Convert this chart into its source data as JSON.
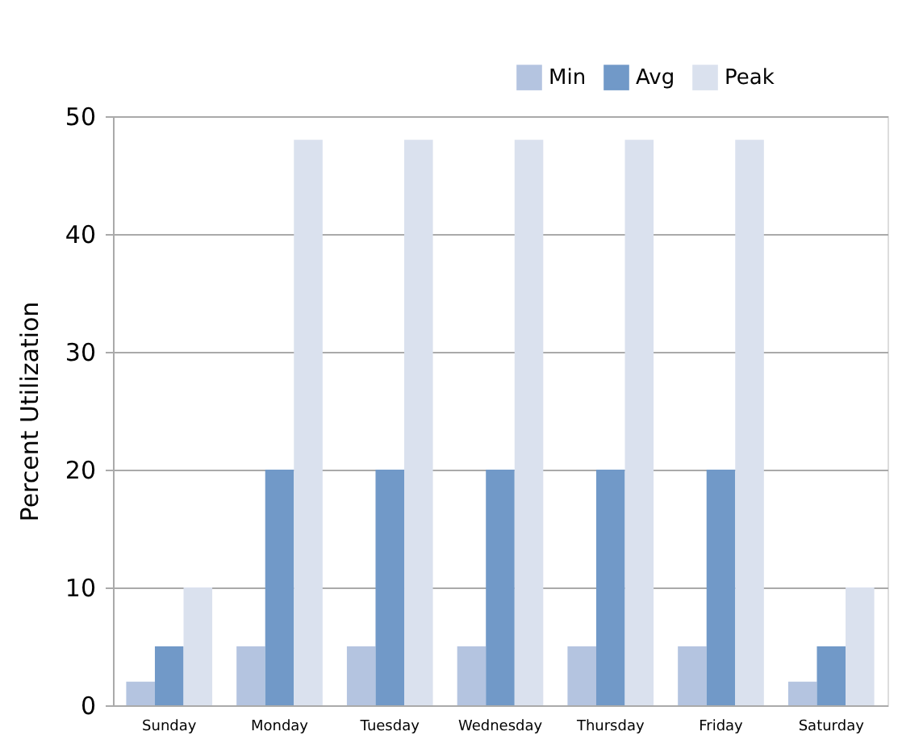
{
  "chart_data": {
    "type": "bar",
    "ylabel": "Percent Utilization",
    "categories": [
      "Sunday",
      "Monday",
      "Tuesday",
      "Wednesday",
      "Thursday",
      "Friday",
      "Saturday"
    ],
    "series": [
      {
        "name": "Min",
        "color": "#b4c4e0",
        "values": [
          2,
          5,
          5,
          5,
          5,
          5,
          2
        ]
      },
      {
        "name": "Avg",
        "color": "#7199c8",
        "values": [
          5,
          20,
          20,
          20,
          20,
          20,
          5
        ]
      },
      {
        "name": "Peak",
        "color": "#dae1ee",
        "values": [
          10,
          48,
          48,
          48,
          48,
          48,
          10
        ]
      }
    ],
    "ylim": [
      0,
      50
    ],
    "yticks": [
      0,
      10,
      20,
      30,
      40,
      50
    ],
    "grid": "y",
    "legend": "top right"
  }
}
